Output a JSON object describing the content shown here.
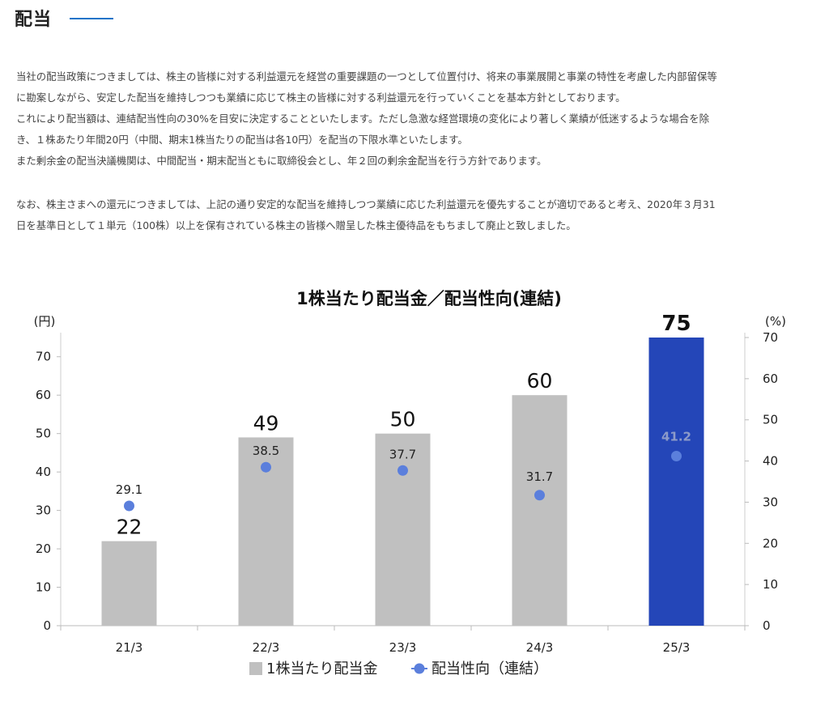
{
  "section": {
    "title": "配当",
    "accent_color": "#1a73c8"
  },
  "policy": {
    "lines": [
      "当社の配当政策につきましては、株主の皆様に対する利益還元を経営の重要課題の一つとして位置付け、将来の事業展開と事業の特性を考慮した内部留保等",
      "に勘案しながら、安定した配当を維持しつつも業績に応じて株主の皆様に対する利益還元を行っていくことを基本方針としております。",
      "これにより配当額は、連結配当性向の30%を目安に決定することといたします。ただし急激な経営環境の変化により著しく業績が低迷するような場合を除",
      "き、１株あたり年間20円（中間、期末1株当たりの配当は各10円）を配当の下限水準といたします。",
      "また剰余金の配当決議機関は、中間配当・期末配当ともに取締役会とし、年２回の剰余金配当を行う方針であります。"
    ]
  },
  "note": {
    "lines": [
      "なお、株主さまへの還元につきましては、上記の通り安定的な配当を維持しつつ業績に応じた利益還元を優先することが適切であると考え、2020年３月31",
      "日を基準日として１単元（100株）以上を保有されている株主の皆様へ贈呈した株主優待品をもちまして廃止と致しました。"
    ]
  },
  "chart_data": {
    "type": "bar+line",
    "title": "1株当たり配当金／配当性向(連結)",
    "categories": [
      "21/3",
      "22/3",
      "23/3",
      "24/3",
      "25/3"
    ],
    "y_left_label": "(円)",
    "y_right_label": "(%)",
    "y_left_lim": [
      0,
      75
    ],
    "y_left_ticks": [
      0,
      10,
      20,
      30,
      40,
      50,
      60,
      70
    ],
    "y_right_lim": [
      0,
      70
    ],
    "y_right_ticks": [
      0,
      10,
      20,
      30,
      40,
      50,
      60,
      70
    ],
    "series": [
      {
        "name": "1株当たり配当金",
        "kind": "bar",
        "axis": "left",
        "values": [
          22,
          49,
          50,
          60,
          75
        ],
        "labels": [
          "22",
          "49",
          "50",
          "60",
          "75"
        ],
        "color": "#c0c0c0",
        "highlight_color": "#2446b8",
        "highlight_index": 4
      },
      {
        "name": "配当性向（連結）",
        "kind": "scatter",
        "axis": "right",
        "values": [
          29.1,
          38.5,
          37.7,
          31.7,
          41.2
        ],
        "labels": [
          "29.1",
          "38.5",
          "37.7",
          "31.7",
          "41.2"
        ],
        "color": "#5b7fdc"
      }
    ],
    "legend_position": "bottom"
  }
}
